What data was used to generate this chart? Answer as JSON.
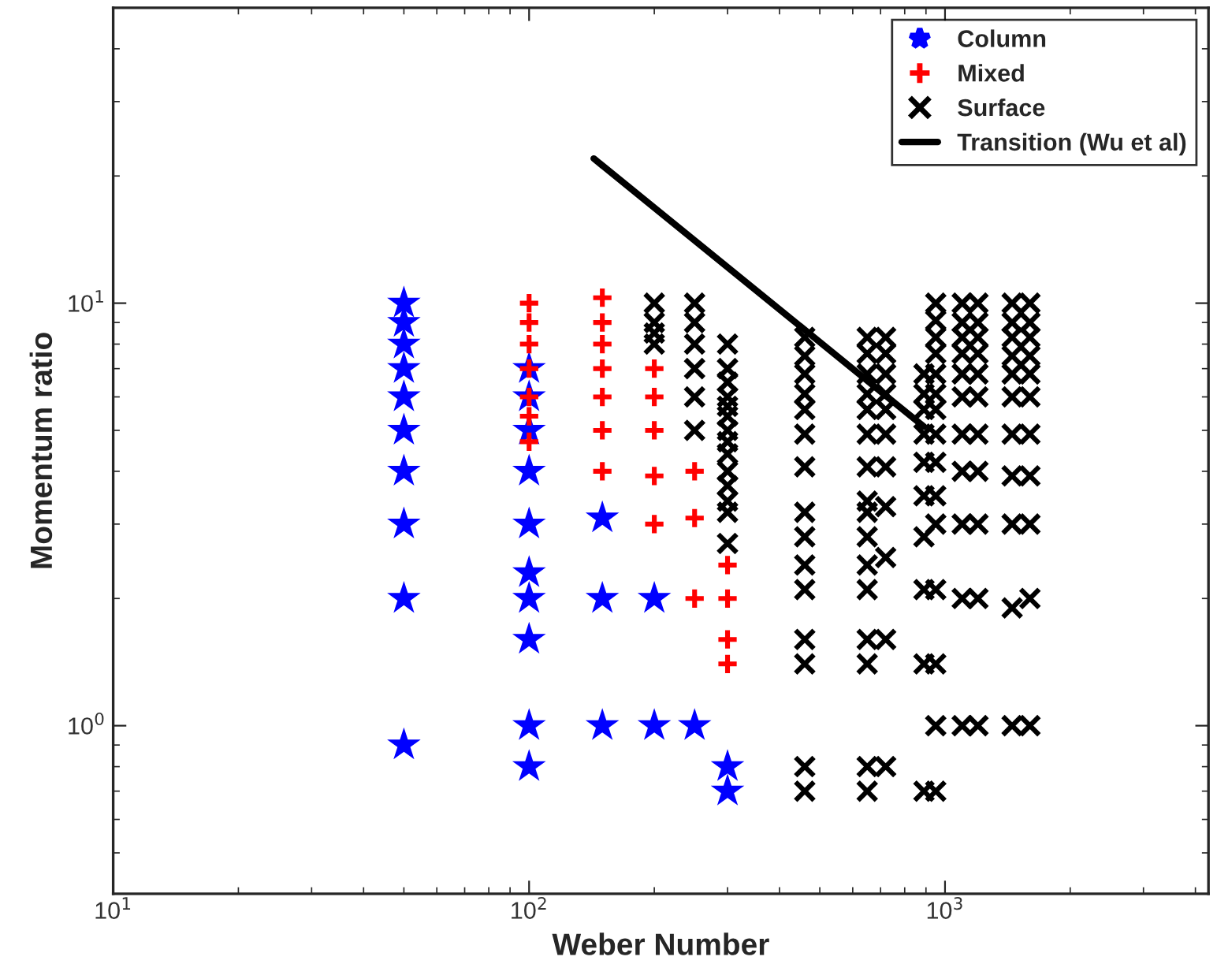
{
  "chart_data": {
    "type": "scatter",
    "xlabel": "Weber Number",
    "ylabel": "Momentum ratio",
    "log": "xy",
    "grid": false,
    "legend": "top right",
    "xlim": [
      10,
      4300
    ],
    "ylim": [
      0.4,
      50
    ],
    "xticks": [
      {
        "value": 10,
        "label": "10$^{1}$"
      },
      {
        "value": 100,
        "label": "10$^{2}$"
      },
      {
        "value": 1000,
        "label": "10$^{3}$"
      }
    ],
    "yticks": [
      {
        "value": 1,
        "label": "10$^{0}$"
      },
      {
        "value": 10,
        "label": "10$^{1}$"
      }
    ],
    "series": [
      {
        "name": "Column",
        "color": "#0000ff",
        "marker": "star",
        "x": [
          50,
          50,
          50,
          50,
          50,
          50,
          50,
          50,
          50,
          50,
          100,
          100,
          100,
          100,
          100,
          100,
          100,
          100,
          100,
          100,
          150,
          150,
          150,
          200,
          200,
          250,
          300,
          300
        ],
        "values": [
          10,
          9,
          8,
          7,
          6,
          5,
          4,
          3,
          2,
          0.9,
          7,
          6,
          5,
          4,
          3,
          2.3,
          2,
          1.6,
          1,
          0.8,
          3.1,
          2,
          1,
          2,
          1,
          1,
          0.8,
          0.7
        ]
      },
      {
        "name": "Mixed",
        "color": "#ff0000",
        "marker": "plus",
        "x": [
          100,
          100,
          100,
          100,
          100,
          100,
          100,
          150,
          150,
          150,
          150,
          150,
          150,
          150,
          200,
          200,
          200,
          200,
          200,
          250,
          250,
          250,
          300,
          300,
          300,
          300
        ],
        "values": [
          10,
          9,
          8,
          7,
          6,
          5.4,
          4.7,
          10.3,
          9,
          8,
          7,
          6,
          5,
          4,
          7,
          6,
          5,
          3.9,
          3,
          4,
          3.1,
          2,
          2.4,
          2,
          1.6,
          1.4
        ]
      },
      {
        "name": "Surface",
        "color": "#000000",
        "marker": "cross",
        "x": [
          200,
          200,
          200,
          200,
          250,
          250,
          250,
          250,
          250,
          250,
          300,
          300,
          300,
          300,
          300,
          300,
          300,
          300,
          300,
          300,
          300,
          300,
          300,
          300,
          460,
          460,
          460,
          460,
          460,
          460,
          460,
          460,
          460,
          460,
          460,
          460,
          460,
          460,
          460,
          650,
          650,
          650,
          650,
          650,
          650,
          650,
          650,
          650,
          650,
          650,
          650,
          650,
          650,
          650,
          650,
          720,
          720,
          720,
          720,
          720,
          720,
          720,
          720,
          720,
          720,
          720,
          890,
          890,
          890,
          890,
          890,
          890,
          890,
          890,
          890,
          890,
          950,
          950,
          950,
          950,
          950,
          950,
          950,
          950,
          950,
          950,
          950,
          950,
          950,
          950,
          950,
          1100,
          1100,
          1100,
          1100,
          1100,
          1100,
          1100,
          1100,
          1100,
          1100,
          1100,
          1200,
          1200,
          1200,
          1200,
          1200,
          1200,
          1200,
          1200,
          1200,
          1200,
          1200,
          1450,
          1450,
          1450,
          1450,
          1450,
          1450,
          1450,
          1450,
          1450,
          1450,
          1450,
          1600,
          1600,
          1600,
          1600,
          1600,
          1600,
          1600,
          1600,
          1600,
          1600,
          1600
        ],
        "values": [
          10,
          9,
          8.5,
          8,
          10,
          9,
          8,
          7,
          6,
          5,
          8,
          7,
          6.5,
          6,
          5.7,
          5.4,
          5,
          4.7,
          4.4,
          4,
          3.7,
          3.4,
          3.2,
          2.7,
          8.3,
          7.5,
          6.8,
          6.1,
          5.6,
          4.9,
          4.1,
          3.2,
          2.8,
          2.4,
          2.1,
          1.6,
          1.4,
          0.8,
          0.7,
          8.3,
          7.6,
          6.8,
          6.1,
          5.6,
          4.9,
          4.1,
          3.4,
          3.2,
          2.8,
          2.4,
          2.1,
          1.6,
          1.4,
          0.8,
          0.7,
          8.3,
          7.6,
          6.8,
          6.1,
          5.6,
          4.9,
          4.1,
          3.3,
          2.5,
          1.6,
          0.8,
          6.8,
          6.1,
          5.6,
          4.9,
          4.2,
          3.5,
          2.8,
          2.1,
          1.4,
          0.7,
          10,
          9.1,
          8.3,
          7.6,
          6.8,
          6.1,
          5.6,
          4.9,
          4.2,
          3.5,
          3,
          2.1,
          1.4,
          1,
          0.7,
          10,
          9,
          8.3,
          7.6,
          6.8,
          6,
          4.9,
          4,
          3,
          2,
          1,
          10,
          9,
          8.3,
          7.6,
          6.8,
          6,
          4.9,
          4,
          3,
          2,
          1,
          10,
          9,
          8.3,
          7.5,
          6.8,
          6,
          4.9,
          3.9,
          3,
          1.9,
          1,
          10,
          9,
          8.3,
          7.5,
          6.8,
          6,
          4.9,
          3.9,
          3,
          2,
          1
        ]
      },
      {
        "name": "Transition (Wu et al)",
        "color": "#000000",
        "type": "line",
        "line_style": "solid",
        "marker": "none",
        "x": [
          143,
          890
        ],
        "values": [
          22,
          5.1
        ]
      }
    ]
  }
}
